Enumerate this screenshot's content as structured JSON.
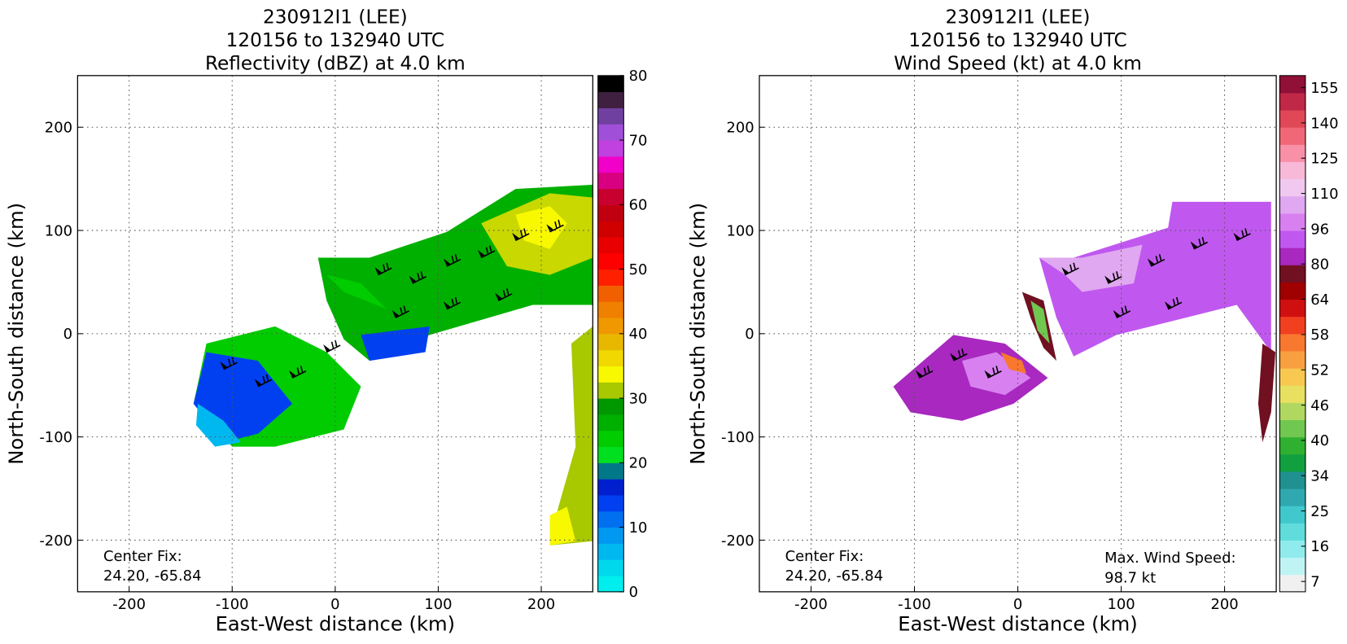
{
  "chart_data": [
    {
      "type": "contourf",
      "title": [
        "230912I1 (LEE)",
        "120156 to 132940 UTC",
        "Reflectivity (dBZ) at 4.0 km"
      ],
      "x_label": "East-West distance (km)",
      "y_label": "North-South distance (km)",
      "xlim": [
        -250,
        250
      ],
      "ylim": [
        -250,
        250
      ],
      "xticks": [
        -200,
        -100,
        0,
        100,
        200
      ],
      "yticks": [
        -200,
        -100,
        0,
        100,
        200
      ],
      "grid": true,
      "annotations": [
        "Center Fix:",
        "24.20, -65.84"
      ],
      "colorbar": {
        "clim": [
          0,
          80
        ],
        "ticks": [
          0,
          10,
          20,
          30,
          40,
          50,
          60,
          70,
          80
        ],
        "colors": [
          "#00eeee",
          "#00d8ee",
          "#00b8f0",
          "#0098f0",
          "#0070f0",
          "#0040f0",
          "#0020d0",
          "#007888",
          "#00e020",
          "#00cc00",
          "#00b000",
          "#009800",
          "#a8c800",
          "#f8f800",
          "#f0d800",
          "#e8b800",
          "#f09800",
          "#f08000",
          "#f06000",
          "#ff2000",
          "#ff0000",
          "#e80000",
          "#d00000",
          "#c00010",
          "#c80030",
          "#d80080",
          "#f000c8",
          "#c040e0",
          "#a050d8",
          "#7040a0",
          "#402040",
          "#000000"
        ]
      }
    },
    {
      "type": "contourf",
      "title": [
        "230912I1 (LEE)",
        "120156 to 132940 UTC",
        "Wind Speed (kt) at 4.0 km"
      ],
      "x_label": "East-West distance (km)",
      "y_label": "North-South distance (km)",
      "xlim": [
        -250,
        250
      ],
      "ylim": [
        -250,
        250
      ],
      "xticks": [
        -200,
        -100,
        0,
        100,
        200
      ],
      "yticks": [
        -200,
        -100,
        0,
        100,
        200
      ],
      "grid": true,
      "annotations": [
        "Center Fix:",
        "24.20, -65.84"
      ],
      "annotations_right": [
        "Max. Wind Speed:",
        "98.7 kt"
      ],
      "colorbar": {
        "ticks": [
          7,
          16,
          25,
          34,
          40,
          46,
          52,
          58,
          64,
          80,
          96,
          110,
          125,
          140,
          155
        ],
        "colors": [
          "#f0f0f0",
          "#c0f4f4",
          "#90ecec",
          "#60dcdc",
          "#40c8cc",
          "#30a8b0",
          "#209090",
          "#10a040",
          "#30b030",
          "#70c850",
          "#b0d860",
          "#e8e060",
          "#f8c850",
          "#f8a040",
          "#f87830",
          "#f04020",
          "#d01010",
          "#a00000",
          "#701020",
          "#a828c0",
          "#c058f0",
          "#d880f0",
          "#e0a8f0",
          "#f0c8f0",
          "#f8b8d8",
          "#f890a8",
          "#f06878",
          "#e04858",
          "#c02848",
          "#901038"
        ]
      }
    }
  ]
}
